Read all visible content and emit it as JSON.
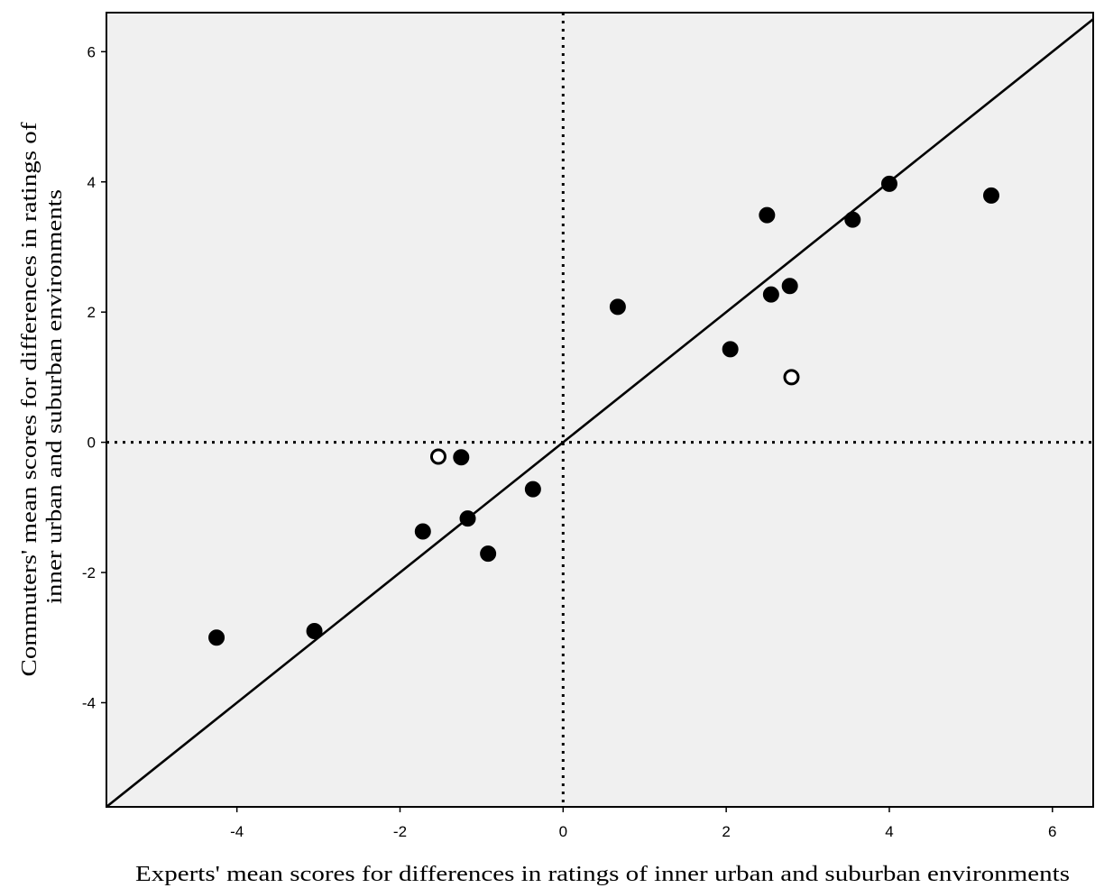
{
  "chart_data": {
    "type": "scatter",
    "title": "",
    "xlabel": "Experts' mean scores for differences in ratings of inner urban and suburban environments",
    "ylabel_lines": [
      "Commuters' mean scores for differences in ratings of",
      "inner urban and suburban environments"
    ],
    "xlim": [
      -5.6,
      6.5
    ],
    "ylim": [
      -5.6,
      6.6
    ],
    "x_ticks": [
      -4,
      -2,
      0,
      2,
      4,
      6
    ],
    "y_ticks": [
      -4,
      -2,
      0,
      2,
      4,
      6
    ],
    "x_tick_labels": [
      "-4",
      "-2",
      "0",
      "2",
      "4",
      "6"
    ],
    "y_tick_labels": [
      "-4",
      "-2",
      "0",
      "2",
      "4",
      "6"
    ],
    "reference_lines": {
      "identity_line": true,
      "x_zero_dotted": true,
      "y_zero_dotted": true
    },
    "grid": false,
    "plot_background": "#f0f0f0",
    "filled_points": [
      {
        "x": -4.25,
        "y": -3.0
      },
      {
        "x": -3.05,
        "y": -2.9
      },
      {
        "x": -1.72,
        "y": -1.37
      },
      {
        "x": -1.25,
        "y": -0.23
      },
      {
        "x": -1.17,
        "y": -1.17
      },
      {
        "x": -0.92,
        "y": -1.71
      },
      {
        "x": -0.37,
        "y": -0.72
      },
      {
        "x": 0.67,
        "y": 2.08
      },
      {
        "x": 2.05,
        "y": 1.43
      },
      {
        "x": 2.5,
        "y": 3.49
      },
      {
        "x": 2.55,
        "y": 2.27
      },
      {
        "x": 2.78,
        "y": 2.4
      },
      {
        "x": 3.55,
        "y": 3.42
      },
      {
        "x": 4.0,
        "y": 3.97
      },
      {
        "x": 5.25,
        "y": 3.79
      }
    ],
    "open_points": [
      {
        "x": -1.53,
        "y": -0.22
      },
      {
        "x": 2.8,
        "y": 1.0
      }
    ],
    "colors": {
      "filled_marker": "#000000",
      "open_marker_fill": "#ffffff",
      "axis": "#000000"
    }
  }
}
